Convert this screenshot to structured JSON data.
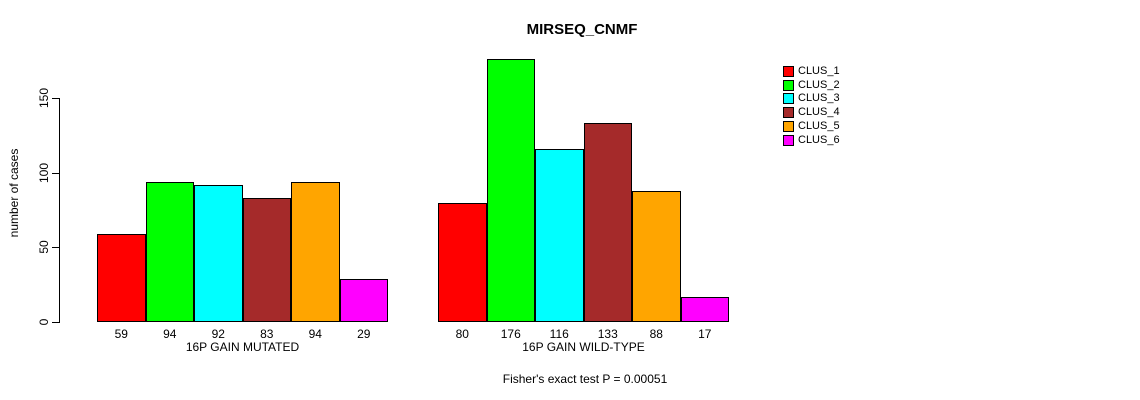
{
  "title": "MIRSEQ_CNMF",
  "footer": "Fisher's exact test P = 0.00051",
  "y_axis": {
    "label": "number of cases",
    "ticks": [
      0,
      50,
      100,
      150
    ]
  },
  "legend": {
    "items": [
      {
        "label": "CLUS_1",
        "color": "#ff0000"
      },
      {
        "label": "CLUS_2",
        "color": "#00ff00"
      },
      {
        "label": "CLUS_3",
        "color": "#00ffff"
      },
      {
        "label": "CLUS_4",
        "color": "#a52a2a"
      },
      {
        "label": "CLUS_5",
        "color": "#ffa500"
      },
      {
        "label": "CLUS_6",
        "color": "#ff00ff"
      }
    ]
  },
  "chart_data": {
    "type": "bar",
    "title": "MIRSEQ_CNMF",
    "xlabel": "",
    "ylabel": "number of cases",
    "ylim": [
      0,
      176
    ],
    "yticks": [
      0,
      50,
      100,
      150
    ],
    "grid": false,
    "legend_position": "right",
    "series_labels": [
      "CLUS_1",
      "CLUS_2",
      "CLUS_3",
      "CLUS_4",
      "CLUS_5",
      "CLUS_6"
    ],
    "colors": [
      "#ff0000",
      "#00ff00",
      "#00ffff",
      "#a52a2a",
      "#ffa500",
      "#ff00ff"
    ],
    "groups": [
      {
        "label": "16P GAIN MUTATED",
        "values": [
          59,
          94,
          92,
          83,
          94,
          29
        ]
      },
      {
        "label": "16P GAIN WILD-TYPE",
        "values": [
          80,
          176,
          116,
          133,
          88,
          17
        ]
      }
    ],
    "annotation": "Fisher's exact test P = 0.00051"
  }
}
